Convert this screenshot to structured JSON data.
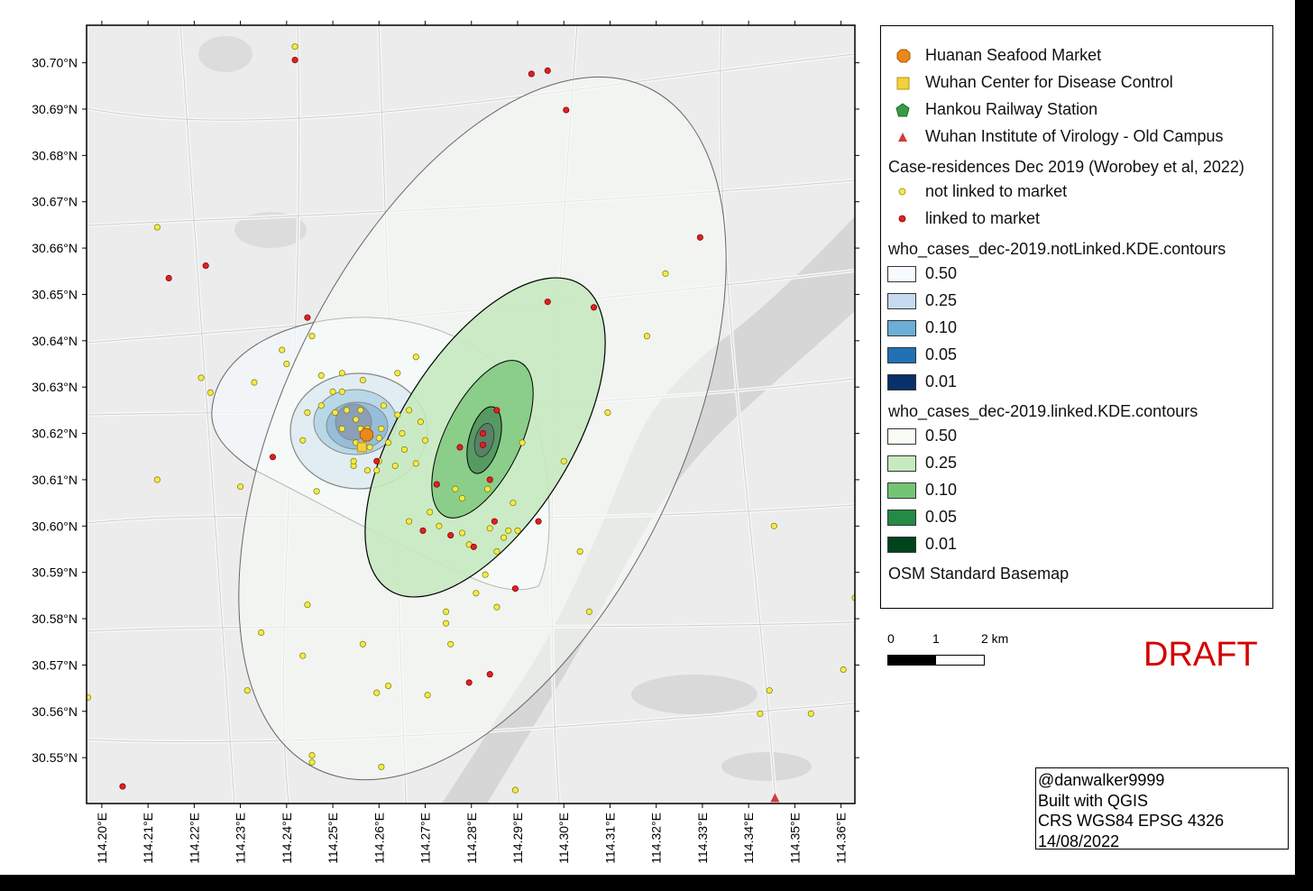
{
  "map": {
    "lat_ticks": [
      "30.70°N",
      "30.69°N",
      "30.68°N",
      "30.67°N",
      "30.66°N",
      "30.65°N",
      "30.64°N",
      "30.63°N",
      "30.62°N",
      "30.61°N",
      "30.60°N",
      "30.59°N",
      "30.58°N",
      "30.57°N",
      "30.56°N",
      "30.55°N"
    ],
    "lon_ticks": [
      "114.20°E",
      "114.21°E",
      "114.22°E",
      "114.23°E",
      "114.24°E",
      "114.25°E",
      "114.26°E",
      "114.27°E",
      "114.28°E",
      "114.29°E",
      "114.30°E",
      "114.31°E",
      "114.32°E",
      "114.33°E",
      "114.34°E",
      "114.35°E",
      "114.36°E"
    ],
    "extent": {
      "lon_min": 114.1967,
      "lon_max": 114.363,
      "lat_min": 30.5401,
      "lat_max": 30.7081
    },
    "points": {
      "huanan_market": [
        114.2573,
        30.6197
      ],
      "wuhan_cdc": [
        114.2563,
        30.617
      ],
      "hankou_station": [],
      "wiv_old_campus": [
        114.3457,
        30.5412
      ],
      "not_linked": [
        [
          114.2418,
          30.7035
        ],
        [
          114.212,
          30.6645
        ],
        [
          114.2455,
          30.641
        ],
        [
          114.239,
          30.638
        ],
        [
          114.2565,
          30.6315
        ],
        [
          114.2235,
          30.6288
        ],
        [
          114.2215,
          30.632
        ],
        [
          114.233,
          30.631
        ],
        [
          114.268,
          30.6365
        ],
        [
          114.264,
          30.633
        ],
        [
          114.23,
          30.6085
        ],
        [
          114.212,
          30.61
        ],
        [
          114.2435,
          30.6185
        ],
        [
          114.2445,
          30.6245
        ],
        [
          114.2505,
          30.6245
        ],
        [
          114.2475,
          30.626
        ],
        [
          114.2475,
          30.6325
        ],
        [
          114.252,
          30.633
        ],
        [
          114.2575,
          30.621
        ],
        [
          114.26,
          30.614
        ],
        [
          114.2635,
          30.613
        ],
        [
          114.268,
          30.6135
        ],
        [
          114.27,
          30.6185
        ],
        [
          114.2655,
          30.6165
        ],
        [
          114.269,
          30.6225
        ],
        [
          114.2665,
          30.625
        ],
        [
          114.2545,
          30.613
        ],
        [
          114.2575,
          30.612
        ],
        [
          114.2595,
          30.612
        ],
        [
          114.2465,
          30.6075
        ],
        [
          114.2545,
          30.614
        ],
        [
          114.2835,
          30.608
        ],
        [
          114.2765,
          30.608
        ],
        [
          114.278,
          30.606
        ],
        [
          114.271,
          30.603
        ],
        [
          114.273,
          30.6
        ],
        [
          114.278,
          30.5985
        ],
        [
          114.2795,
          30.596
        ],
        [
          114.284,
          30.5995
        ],
        [
          114.288,
          30.599
        ],
        [
          114.289,
          30.605
        ],
        [
          114.29,
          30.599
        ],
        [
          114.287,
          30.5975
        ],
        [
          114.2855,
          30.5945
        ],
        [
          114.283,
          30.5895
        ],
        [
          114.281,
          30.5855
        ],
        [
          114.2855,
          30.5825
        ],
        [
          114.2745,
          30.5815
        ],
        [
          114.2745,
          30.579
        ],
        [
          114.2755,
          30.5745
        ],
        [
          114.2705,
          30.5635
        ],
        [
          114.2665,
          30.601
        ],
        [
          114.2565,
          30.5745
        ],
        [
          114.2595,
          30.564
        ],
        [
          114.262,
          30.5655
        ],
        [
          114.2605,
          30.548
        ],
        [
          114.2455,
          30.5505
        ],
        [
          114.2455,
          30.549
        ],
        [
          114.2435,
          30.572
        ],
        [
          114.2445,
          30.583
        ],
        [
          114.2345,
          30.577
        ],
        [
          114.2315,
          30.5645
        ],
        [
          114.197,
          30.563
        ],
        [
          114.2895,
          30.543
        ],
        [
          114.3,
          30.614
        ],
        [
          114.3035,
          30.5945
        ],
        [
          114.3095,
          30.6245
        ],
        [
          114.318,
          30.641
        ],
        [
          114.322,
          30.6545
        ],
        [
          114.291,
          30.618
        ],
        [
          114.3055,
          30.5815
        ],
        [
          114.3455,
          30.6
        ],
        [
          114.3445,
          30.5645
        ],
        [
          114.3425,
          30.5595
        ],
        [
          114.3535,
          30.5595
        ],
        [
          114.3605,
          30.569
        ],
        [
          114.363,
          30.5845
        ],
        [
          114.24,
          30.635
        ],
        [
          114.253,
          30.625
        ],
        [
          114.252,
          30.629
        ],
        [
          114.25,
          30.629
        ],
        [
          114.252,
          30.621
        ],
        [
          114.255,
          30.623
        ],
        [
          114.256,
          30.625
        ],
        [
          114.261,
          30.626
        ],
        [
          114.264,
          30.624
        ],
        [
          114.265,
          30.62
        ],
        [
          114.262,
          30.618
        ],
        [
          114.26,
          30.619
        ],
        [
          114.255,
          30.618
        ],
        [
          114.258,
          30.617
        ],
        [
          114.2605,
          30.621
        ],
        [
          114.256,
          30.621
        ]
      ],
      "linked": [
        [
          114.2418,
          30.7006
        ],
        [
          114.2145,
          30.6535
        ],
        [
          114.2225,
          30.6562
        ],
        [
          114.2445,
          30.645
        ],
        [
          114.237,
          30.6149
        ],
        [
          114.2045,
          30.5438
        ],
        [
          114.293,
          30.6976
        ],
        [
          114.2965,
          30.6983
        ],
        [
          114.3005,
          30.6898
        ],
        [
          114.3295,
          30.6623
        ],
        [
          114.2965,
          30.6484
        ],
        [
          114.3065,
          30.6472
        ],
        [
          114.2855,
          30.625
        ],
        [
          114.2825,
          30.62
        ],
        [
          114.2825,
          30.6175
        ],
        [
          114.2775,
          30.617
        ],
        [
          114.2725,
          30.609
        ],
        [
          114.284,
          30.61
        ],
        [
          114.2945,
          30.601
        ],
        [
          114.285,
          30.601
        ],
        [
          114.2755,
          30.598
        ],
        [
          114.2695,
          30.599
        ],
        [
          114.2805,
          30.5955
        ],
        [
          114.2895,
          30.5865
        ],
        [
          114.2795,
          30.5662
        ],
        [
          114.284,
          30.568
        ],
        [
          114.2595,
          30.614
        ],
        [
          114.2573,
          30.62
        ]
      ]
    },
    "legend": {
      "huanan_label": "Huanan Seafood Market",
      "cdc_label": "Wuhan Center for Disease Control",
      "hankou_label": "Hankou Railway Station",
      "wiv_label": "Wuhan Institute of Virology - Old Campus",
      "case_header": "Case-residences Dec 2019 (Worobey et al, 2022)",
      "not_linked_label": "not linked to market",
      "linked_label": "linked to market",
      "notlinked_header": "who_cases_dec-2019.notLinked.KDE.contours",
      "notlinked_levels": [
        {
          "label": "0.50",
          "color": "#f7fbff"
        },
        {
          "label": "0.25",
          "color": "#c6dbef"
        },
        {
          "label": "0.10",
          "color": "#6baed6"
        },
        {
          "label": "0.05",
          "color": "#2171b5"
        },
        {
          "label": "0.01",
          "color": "#08306b"
        }
      ],
      "linked_header": "who_cases_dec-2019.linked.KDE.contours",
      "linked_levels": [
        {
          "label": "0.50",
          "color": "#f7fcf5"
        },
        {
          "label": "0.25",
          "color": "#c7e9c0"
        },
        {
          "label": "0.10",
          "color": "#74c476"
        },
        {
          "label": "0.05",
          "color": "#238b45"
        },
        {
          "label": "0.01",
          "color": "#00441b"
        }
      ],
      "basemap_label": "OSM Standard Basemap"
    },
    "scale_bar": {
      "labels": [
        "0",
        "1",
        "2 km"
      ]
    },
    "draft_label": "DRAFT",
    "credits": [
      "@danwalker9999",
      "Built with QGIS",
      "CRS WGS84 EPSG 4326",
      "14/08/2022"
    ],
    "colors": {
      "not_linked_dot": "#f5e94a",
      "linked_dot": "#e02020",
      "huanan": "#e8891c",
      "cdc": "#f4d03f",
      "hankou": "#3a9a45",
      "wiv": "#d23b3b",
      "draft": "#d40000"
    }
  }
}
